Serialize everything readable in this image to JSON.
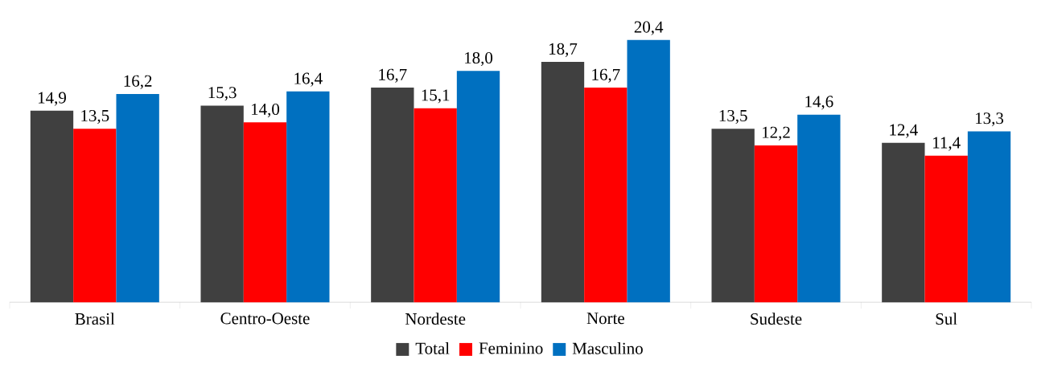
{
  "chart_data": {
    "type": "bar",
    "categories": [
      "Brasil",
      "Centro-Oeste",
      "Nordeste",
      "Norte",
      "Sudeste",
      "Sul"
    ],
    "series": [
      {
        "name": "Total",
        "color": "#404040",
        "values": [
          14.9,
          15.3,
          16.7,
          18.7,
          13.5,
          12.4
        ],
        "value_labels": [
          "14,9",
          "15,3",
          "16,7",
          "18,7",
          "13,5",
          "12,4"
        ]
      },
      {
        "name": "Feminino",
        "color": "#ff0000",
        "values": [
          13.5,
          14.0,
          15.1,
          16.7,
          12.2,
          11.4
        ],
        "value_labels": [
          "13,5",
          "14,0",
          "15,1",
          "16,7",
          "12,2",
          "11,4"
        ]
      },
      {
        "name": "Masculino",
        "color": "#0070c0",
        "values": [
          16.2,
          16.4,
          18.0,
          20.4,
          14.6,
          13.3
        ],
        "value_labels": [
          "16,2",
          "16,4",
          "18,0",
          "20,4",
          "14,6",
          "13,3"
        ]
      }
    ],
    "legend": "bottom"
  }
}
